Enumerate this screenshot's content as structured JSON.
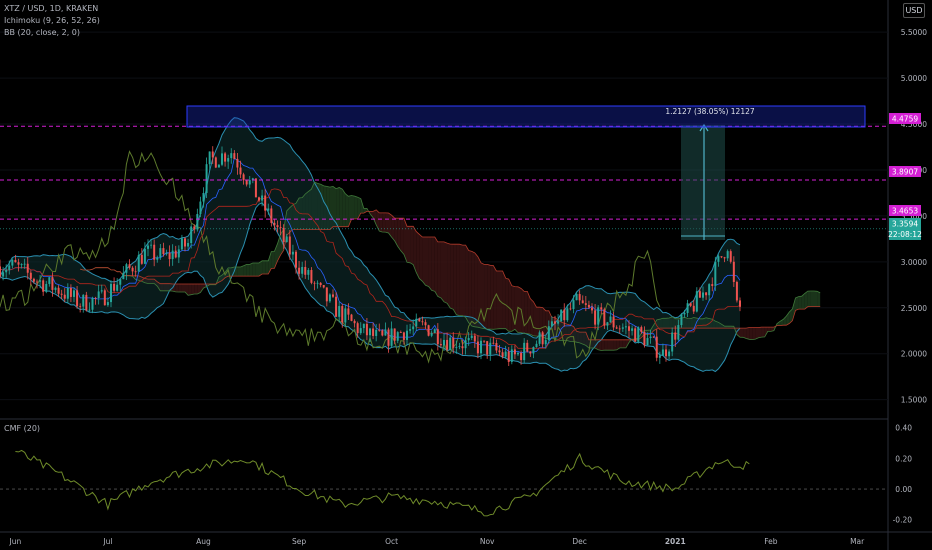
{
  "symbol": {
    "title": "XTZ / USD, 1D, KRAKEN",
    "ichimoku_label": "Ichimoku (9, 26, 52, 26)",
    "bb_label": "BB (20, close, 2, 0)",
    "cmf_label": "CMF (20)",
    "currency_badge": "USD"
  },
  "measure": {
    "label": "1.2127 (38.05%) 12127"
  },
  "price_tags": {
    "level_1": "4.4759",
    "level_2": "3.8907",
    "level_3": "3.4653",
    "last_price": "3.3594",
    "countdown": "22:08:12"
  },
  "colors": {
    "candle_up": "#26a69a",
    "candle_down": "#ef5350",
    "bb_line": "#2a8fb0",
    "bb_fill": "#0f2d2d",
    "conversion": "#2962ff",
    "base": "#b2261c",
    "lagging": "#5d7a2c",
    "cloud_bull": "#1f3d1f",
    "cloud_bear": "#3a1414",
    "level_line": "#d41fd4",
    "measure_box": "#1e2dc8",
    "cmf_line": "#6f8b2a"
  },
  "chart_data": [
    {
      "type": "candlestick",
      "title": "XTZ / USD, 1D, KRAKEN",
      "x_tick_labels": [
        "Jun",
        "Jul",
        "Aug",
        "Sep",
        "Oct",
        "Nov",
        "Dec",
        "2021",
        "Feb",
        "Mar"
      ],
      "y_tick_labels": [
        "5.5000",
        "5.0000",
        "4.5000",
        "4.0000",
        "3.5000",
        "3.0000",
        "2.5000",
        "2.0000",
        "1.5000"
      ],
      "ylim": [
        1.3,
        5.85
      ],
      "horizontal_levels": [
        4.4759,
        3.8907,
        3.4653
      ],
      "last_price": 3.3594,
      "measure": {
        "from": 3.19,
        "to": 4.4,
        "change": 1.2127,
        "percent": 38.05
      },
      "series": [
        {
          "name": "close",
          "x": [
            "2020-06-01",
            "2020-06-08",
            "2020-06-15",
            "2020-06-22",
            "2020-06-29",
            "2020-07-06",
            "2020-07-13",
            "2020-07-20",
            "2020-07-27",
            "2020-08-03",
            "2020-08-10",
            "2020-08-17",
            "2020-08-24",
            "2020-08-31",
            "2020-09-07",
            "2020-09-14",
            "2020-09-21",
            "2020-09-28",
            "2020-10-05",
            "2020-10-12",
            "2020-10-19",
            "2020-10-26",
            "2020-11-02",
            "2020-11-09",
            "2020-11-16",
            "2020-11-23",
            "2020-11-30",
            "2020-12-07",
            "2020-12-14",
            "2020-12-21",
            "2020-12-28",
            "2021-01-04",
            "2021-01-11",
            "2021-01-18",
            "2021-01-21"
          ],
          "values": [
            2.95,
            2.8,
            2.7,
            2.55,
            2.6,
            2.85,
            3.1,
            3.05,
            3.2,
            4.1,
            4.2,
            3.8,
            3.4,
            3.0,
            2.7,
            2.45,
            2.25,
            2.15,
            2.25,
            2.3,
            2.15,
            2.1,
            2.05,
            1.95,
            2.1,
            2.3,
            2.55,
            2.4,
            2.3,
            2.2,
            2.0,
            2.4,
            2.7,
            3.2,
            2.5
          ]
        }
      ]
    },
    {
      "type": "line",
      "title": "CMF (20)",
      "y_tick_labels": [
        "0.40",
        "0.20",
        "0.00",
        "-0.20"
      ],
      "ylim": [
        -0.28,
        0.45
      ],
      "series": [
        {
          "name": "CMF (20)",
          "x": [
            "2020-06-01",
            "2020-06-15",
            "2020-07-01",
            "2020-07-15",
            "2020-08-01",
            "2020-08-15",
            "2020-09-01",
            "2020-09-15",
            "2020-10-01",
            "2020-10-15",
            "2020-11-01",
            "2020-11-15",
            "2020-12-01",
            "2020-12-15",
            "2021-01-01",
            "2021-01-15",
            "2021-01-25"
          ],
          "values": [
            0.25,
            0.1,
            -0.1,
            0.05,
            0.15,
            0.2,
            0.0,
            -0.1,
            -0.05,
            -0.08,
            -0.15,
            -0.05,
            0.2,
            0.05,
            0.0,
            0.18,
            0.15
          ]
        }
      ]
    }
  ]
}
